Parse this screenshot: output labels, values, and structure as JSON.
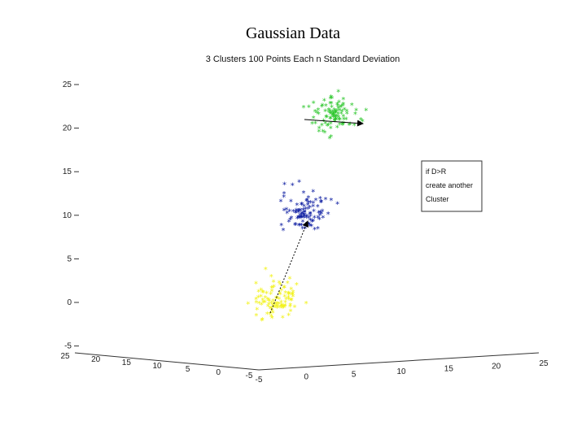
{
  "slide": {
    "title": "Gaussian Data"
  },
  "chart_data": {
    "type": "scatter",
    "title": "3 Clusters 100 Points Each n Standard Deviation",
    "view": "3d",
    "z_ticks": [
      "25",
      "20",
      "15",
      "10",
      "5",
      "0",
      "-5"
    ],
    "z_tick_values": [
      25,
      20,
      15,
      10,
      5,
      0,
      -5
    ],
    "left_axis_ticks": [
      "25",
      "20",
      "15",
      "10",
      "5",
      "0",
      "-5"
    ],
    "right_axis_ticks": [
      "-5",
      "0",
      "5",
      "10",
      "15",
      "20",
      "25"
    ],
    "series": [
      {
        "color": "#2ec72e",
        "marker": "*",
        "center_z": 21,
        "spread": 1,
        "count": 100
      },
      {
        "color": "#0a1aa0",
        "marker": "*",
        "center_z": 10,
        "spread": 1,
        "count": 100
      },
      {
        "color": "#f2f21a",
        "marker": "*",
        "center_z": 0,
        "spread": 1,
        "count": 100
      }
    ],
    "annotation": {
      "lines": [
        "if D>R",
        "create another",
        "Cluster"
      ]
    }
  }
}
